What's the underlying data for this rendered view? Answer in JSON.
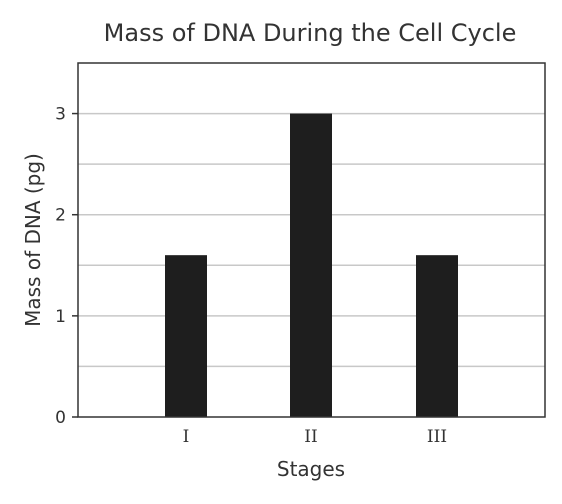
{
  "chart_data": {
    "type": "bar",
    "title": "Mass of DNA During the Cell Cycle",
    "xlabel": "Stages",
    "ylabel": "Mass of DNA (pg)",
    "categories": [
      "I",
      "II",
      "III"
    ],
    "values": [
      1.6,
      3.0,
      1.6
    ],
    "ylim": [
      0,
      3.5
    ],
    "yticks": [
      "0",
      "1",
      "2",
      "3"
    ],
    "grid": true,
    "bar_color": "#1e1e1e",
    "grid_color": "#c8c8c8",
    "axis_color": "#333333"
  }
}
